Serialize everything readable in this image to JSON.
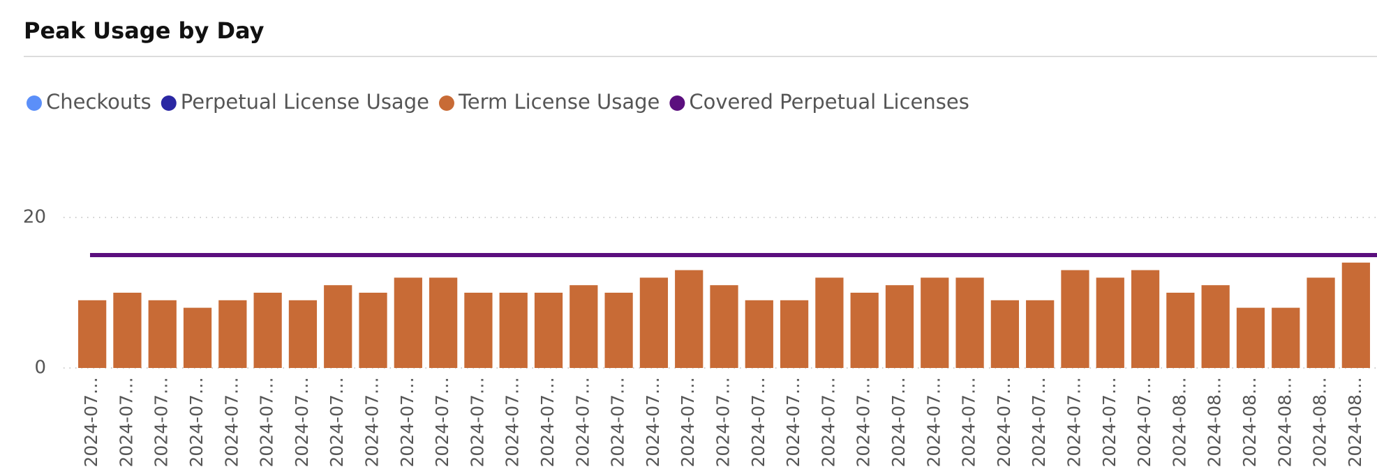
{
  "chart_data": {
    "type": "bar",
    "title": "Peak Usage by Day",
    "categories": [
      "2024-07…",
      "2024-07…",
      "2024-07…",
      "2024-07…",
      "2024-07…",
      "2024-07…",
      "2024-07…",
      "2024-07…",
      "2024-07…",
      "2024-07…",
      "2024-07…",
      "2024-07…",
      "2024-07…",
      "2024-07…",
      "2024-07…",
      "2024-07…",
      "2024-07…",
      "2024-07…",
      "2024-07…",
      "2024-07…",
      "2024-07…",
      "2024-07…",
      "2024-07…",
      "2024-07…",
      "2024-07…",
      "2024-07…",
      "2024-07…",
      "2024-07…",
      "2024-07…",
      "2024-07…",
      "2024-07…",
      "2024-08…",
      "2024-08…",
      "2024-08…",
      "2024-08…",
      "2024-08…",
      "2024-08…"
    ],
    "series": [
      {
        "name": "Checkouts",
        "color": "#5b8ff9",
        "kind": "bar",
        "values": [
          null,
          null,
          null,
          null,
          null,
          null,
          null,
          null,
          null,
          null,
          null,
          null,
          null,
          null,
          null,
          null,
          null,
          null,
          null,
          null,
          null,
          null,
          null,
          null,
          null,
          null,
          null,
          null,
          null,
          null,
          null,
          null,
          null,
          null,
          null,
          null,
          null
        ]
      },
      {
        "name": "Perpetual License Usage",
        "color": "#2a27a3",
        "kind": "bar",
        "values": [
          null,
          null,
          null,
          null,
          null,
          null,
          null,
          null,
          null,
          null,
          null,
          null,
          null,
          null,
          null,
          null,
          null,
          null,
          null,
          null,
          null,
          null,
          null,
          null,
          null,
          null,
          null,
          null,
          null,
          null,
          null,
          null,
          null,
          null,
          null,
          null,
          null
        ]
      },
      {
        "name": "Term License Usage",
        "color": "#c86b36",
        "kind": "bar",
        "values": [
          9,
          10,
          9,
          8,
          9,
          10,
          9,
          11,
          10,
          12,
          12,
          10,
          10,
          10,
          11,
          10,
          12,
          13,
          11,
          9,
          9,
          12,
          10,
          11,
          12,
          12,
          9,
          9,
          13,
          12,
          13,
          10,
          11,
          8,
          8,
          12,
          14
        ]
      },
      {
        "name": "Covered Perpetual Licenses",
        "color": "#5b0f7e",
        "kind": "line",
        "values": [
          15,
          15,
          15,
          15,
          15,
          15,
          15,
          15,
          15,
          15,
          15,
          15,
          15,
          15,
          15,
          15,
          15,
          15,
          15,
          15,
          15,
          15,
          15,
          15,
          15,
          15,
          15,
          15,
          15,
          15,
          15,
          15,
          15,
          15,
          15,
          15,
          15
        ]
      }
    ],
    "ylim": [
      0,
      25
    ],
    "yticks": [
      0,
      20
    ],
    "grid": true
  }
}
